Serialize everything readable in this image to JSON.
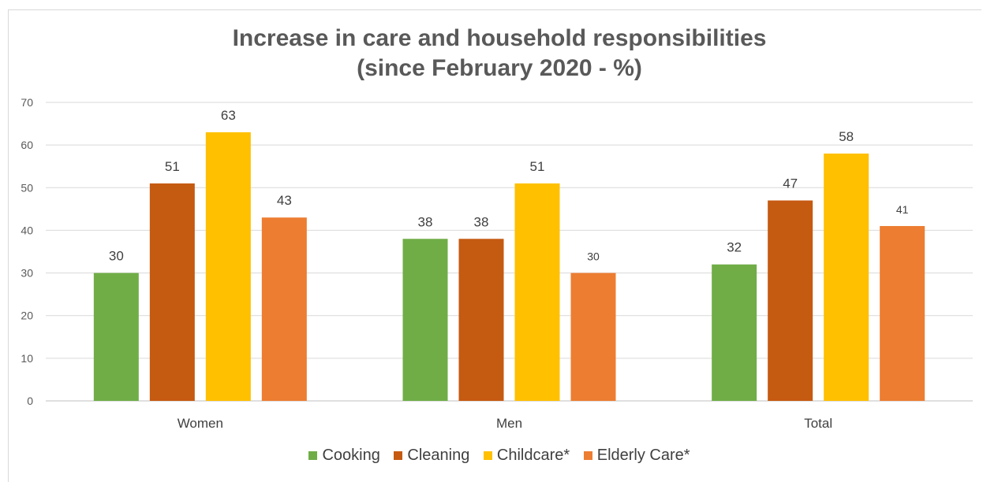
{
  "chart_data": {
    "type": "bar",
    "title_line1": "Increase in care and household responsibilities",
    "title_line2": "(since February 2020 - %)",
    "categories": [
      "Women",
      "Men",
      "Total"
    ],
    "series": [
      {
        "name": "Cooking",
        "color": "#70ad47",
        "values": [
          30,
          38,
          32
        ]
      },
      {
        "name": "Cleaning",
        "color": "#c55a11",
        "values": [
          51,
          38,
          47
        ]
      },
      {
        "name": "Childcare*",
        "color": "#ffc000",
        "values": [
          63,
          51,
          58
        ]
      },
      {
        "name": "Elderly Care*",
        "color": "#ed7d31",
        "values": [
          43,
          30,
          41
        ]
      }
    ],
    "ylim": [
      0,
      70
    ],
    "yticks": [
      "0",
      "10",
      "20",
      "30",
      "40",
      "50",
      "60",
      "70"
    ],
    "grid": true,
    "legend_position": "bottom"
  }
}
